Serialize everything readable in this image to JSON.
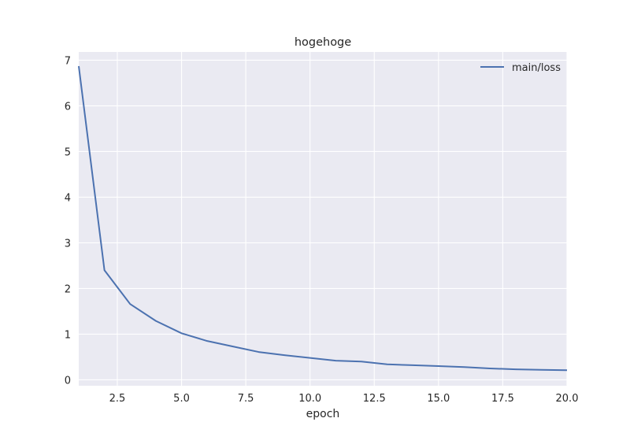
{
  "chart_data": {
    "type": "line",
    "title": "hogehoge",
    "xlabel": "epoch",
    "ylabel": "",
    "xlim": [
      1,
      20
    ],
    "ylim": [
      -0.13,
      7.18
    ],
    "xticks": [
      2.5,
      5.0,
      7.5,
      10.0,
      12.5,
      15.0,
      17.5,
      20.0
    ],
    "xtick_labels": [
      "2.5",
      "5.0",
      "7.5",
      "10.0",
      "12.5",
      "15.0",
      "17.5",
      "20.0"
    ],
    "yticks": [
      0,
      1,
      2,
      3,
      4,
      5,
      6,
      7
    ],
    "ytick_labels": [
      "0",
      "1",
      "2",
      "3",
      "4",
      "5",
      "6",
      "7"
    ],
    "grid": true,
    "legend_position": "top-right",
    "x": [
      1,
      2,
      3,
      4,
      5,
      6,
      7,
      8,
      9,
      10,
      11,
      12,
      13,
      14,
      15,
      16,
      17,
      18,
      19,
      20
    ],
    "series": [
      {
        "name": "main/loss",
        "color": "#4c72b0",
        "values": [
          6.87,
          2.4,
          1.66,
          1.29,
          1.02,
          0.85,
          0.73,
          0.61,
          0.54,
          0.48,
          0.42,
          0.4,
          0.34,
          0.32,
          0.3,
          0.28,
          0.25,
          0.23,
          0.22,
          0.21
        ]
      }
    ],
    "colors": {
      "plot_background": "#eaeaf2",
      "grid": "#ffffff"
    }
  }
}
